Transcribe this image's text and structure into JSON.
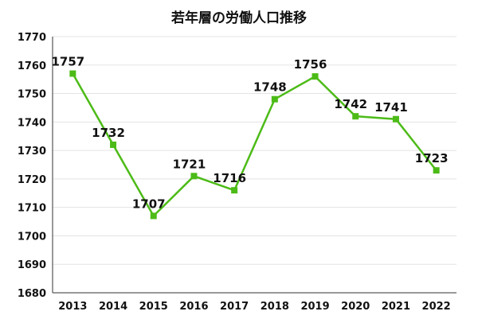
{
  "chart_data": {
    "type": "line",
    "title": "若年層の労働人口推移",
    "xlabel": "",
    "ylabel": "",
    "categories": [
      "2013",
      "2014",
      "2015",
      "2016",
      "2017",
      "2018",
      "2019",
      "2020",
      "2021",
      "2022"
    ],
    "series": [
      {
        "values": [
          1757,
          1732,
          1707,
          1721,
          1716,
          1748,
          1756,
          1742,
          1741,
          1723
        ]
      }
    ],
    "ylim": [
      1680,
      1770
    ],
    "yticks": [
      1680,
      1690,
      1700,
      1710,
      1720,
      1730,
      1740,
      1750,
      1760,
      1770
    ],
    "grid": "horizontal",
    "legend": "none",
    "line_color": "#4cbb17",
    "marker": "square",
    "data_labels": true
  }
}
